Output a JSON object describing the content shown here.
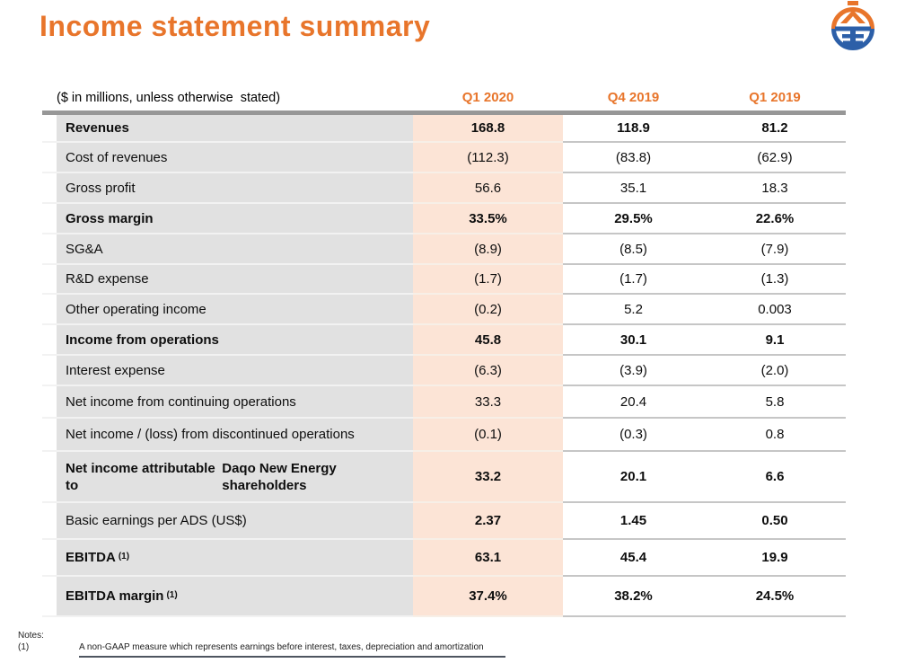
{
  "slide_title": "Income statement summary",
  "logo": {
    "name": "daqo-new-energy-logo",
    "orange": "#E8752B",
    "blue": "#2C5FA8"
  },
  "colors": {
    "accent_orange": "#E8752B",
    "highlight_column": "#FCE4D6",
    "label_column_gray": "#E1E1E1",
    "header_rule_gray": "#979797"
  },
  "table": {
    "unit_note": "($ in millions, unless otherwise  stated)",
    "columns": [
      "Q1 2020",
      "Q4 2019",
      "Q1 2019"
    ],
    "rows": [
      {
        "label": "Revenues",
        "label_bold": true,
        "values_bold": true,
        "values": [
          "168.8",
          "118.9",
          "81.2"
        ]
      },
      {
        "label": "Cost of revenues",
        "label_bold": false,
        "values_bold": false,
        "values": [
          "(112.3)",
          "(83.8)",
          "(62.9)"
        ]
      },
      {
        "label": "Gross profit",
        "label_bold": false,
        "values_bold": false,
        "values": [
          "56.6",
          "35.1",
          "18.3"
        ]
      },
      {
        "label": "Gross margin",
        "label_bold": true,
        "values_bold": true,
        "values": [
          "33.5%",
          "29.5%",
          "22.6%"
        ]
      },
      {
        "label": "SG&A",
        "label_bold": false,
        "values_bold": false,
        "values": [
          "(8.9)",
          "(8.5)",
          "(7.9)"
        ]
      },
      {
        "label": "R&D expense",
        "label_bold": false,
        "values_bold": false,
        "values": [
          "(1.7)",
          "(1.7)",
          "(1.3)"
        ]
      },
      {
        "label": "Other operating income",
        "label_bold": false,
        "values_bold": false,
        "values": [
          "(0.2)",
          "5.2",
          "0.003"
        ]
      },
      {
        "label": "Income from operations",
        "label_bold": true,
        "values_bold": true,
        "values": [
          "45.8",
          "30.1",
          "9.1"
        ]
      },
      {
        "label": "Interest expense",
        "label_bold": false,
        "values_bold": false,
        "values": [
          "(6.3)",
          "(3.9)",
          "(2.0)"
        ]
      },
      {
        "label": "Net income from continuing operations",
        "label_bold": false,
        "values_bold": false,
        "values": [
          "33.3",
          "20.4",
          "5.8"
        ]
      },
      {
        "label": "Net income / (loss) from discontinued operations",
        "label_bold": false,
        "values_bold": false,
        "values": [
          "(0.1)",
          "(0.3)",
          "0.8"
        ]
      },
      {
        "label": "Net income attributable to",
        "label2": "Daqo New Energy shareholders",
        "label_bold": true,
        "values_bold": true,
        "values": [
          "33.2",
          "20.1",
          "6.6"
        ]
      },
      {
        "label": "Basic earnings per ADS (US$)",
        "label_bold": false,
        "values_bold": true,
        "values": [
          "2.37",
          "1.45",
          "0.50"
        ]
      },
      {
        "label": "EBITDA",
        "sup": "(1)",
        "label_bold": true,
        "values_bold": true,
        "values": [
          "63.1",
          "45.4",
          "19.9"
        ]
      },
      {
        "label": "EBITDA margin",
        "sup": "(1)",
        "label_bold": true,
        "values_bold": true,
        "values": [
          "37.4%",
          "38.2%",
          "24.5%"
        ]
      }
    ]
  },
  "notes": {
    "heading": "Notes:",
    "items": [
      {
        "marker": "(1)",
        "text": "A non-GAAP measure which represents earnings before interest, taxes, depreciation and amortization"
      }
    ]
  }
}
